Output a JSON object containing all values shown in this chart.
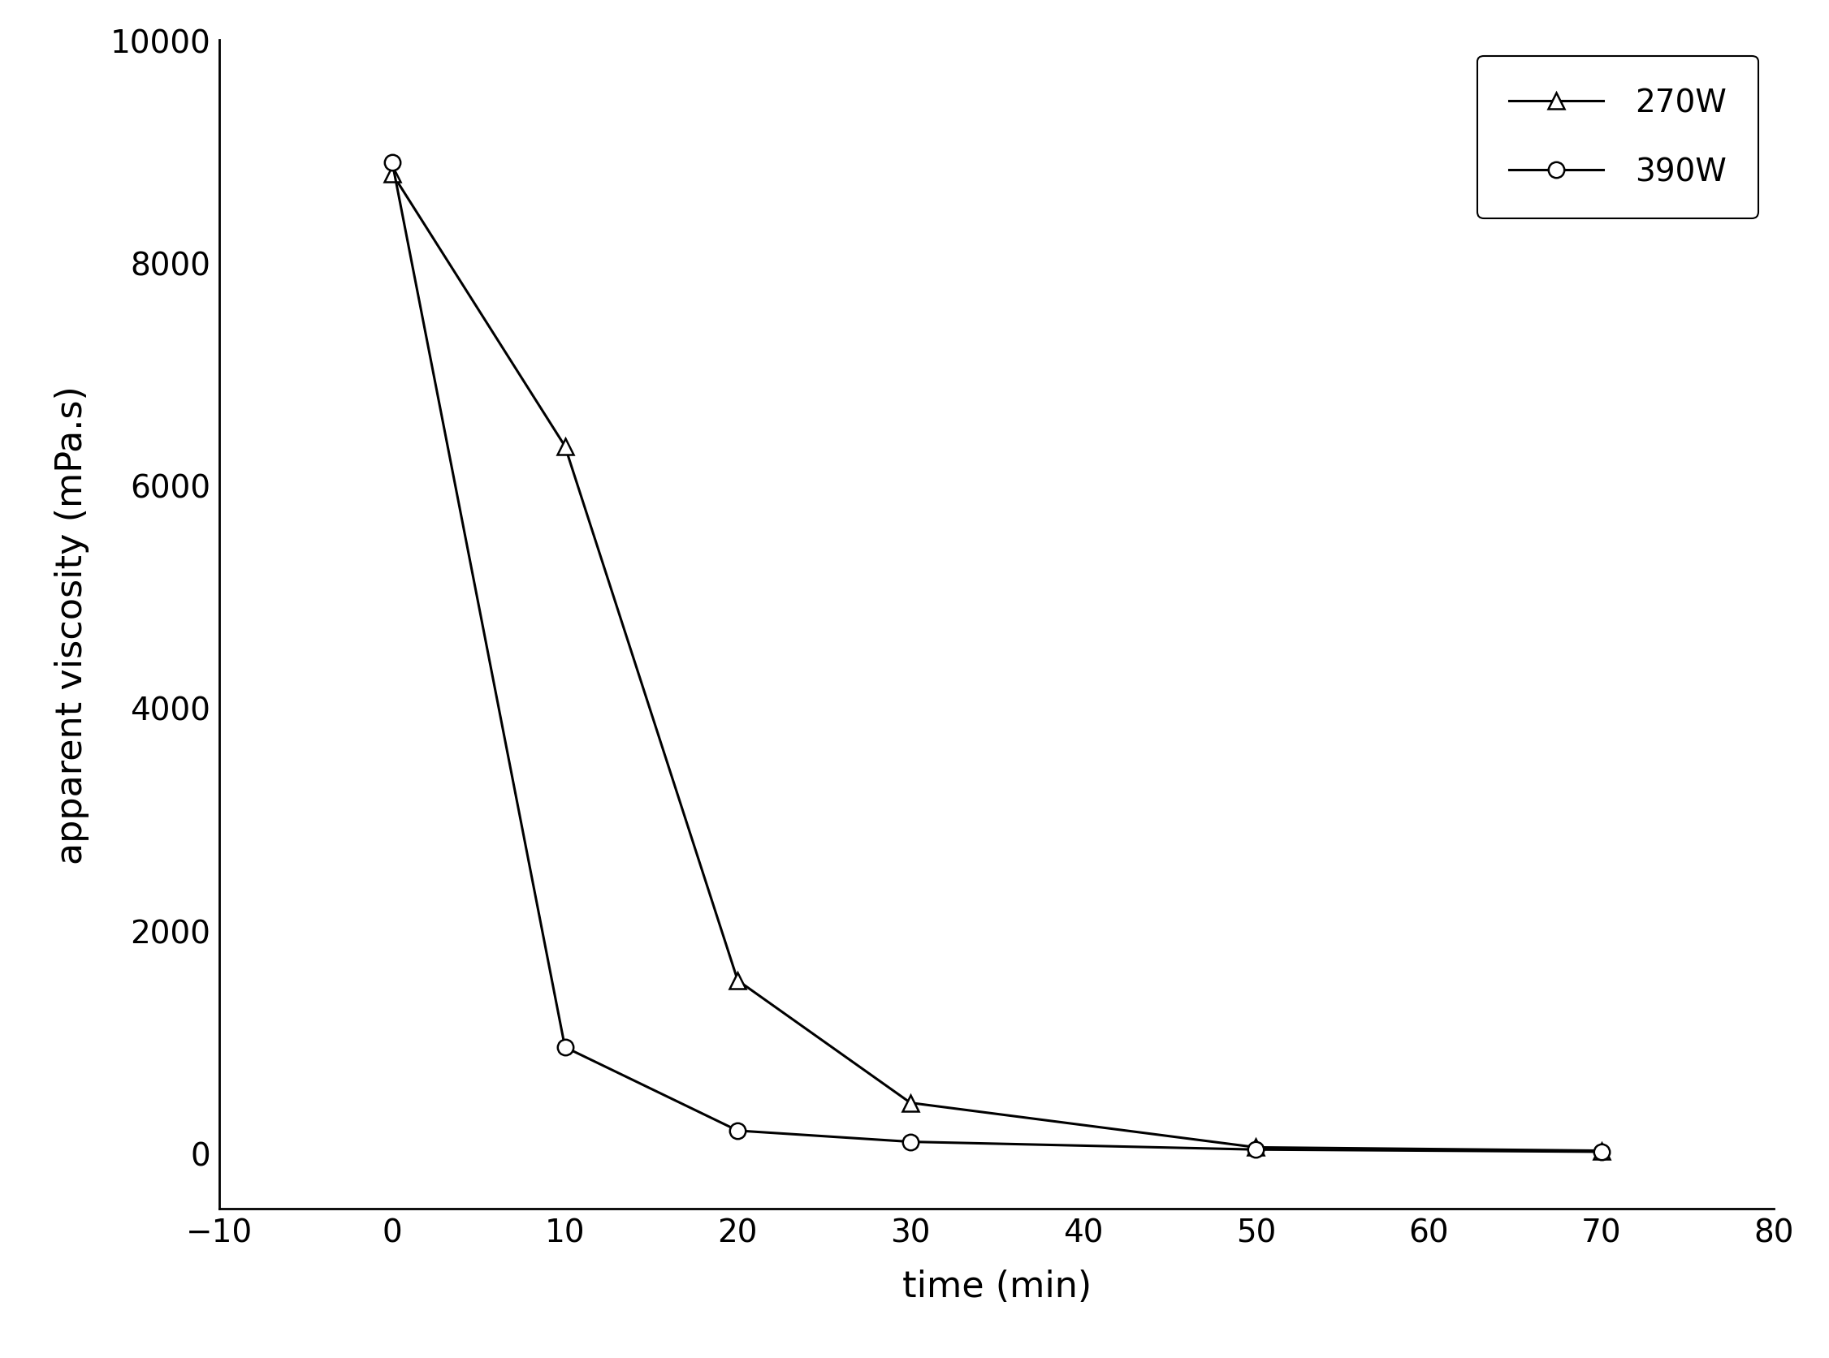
{
  "series": [
    {
      "label": "270W",
      "x": [
        0,
        10,
        20,
        30,
        50,
        70
      ],
      "y": [
        8800,
        6350,
        1550,
        450,
        50,
        20
      ],
      "marker": "^",
      "color": "#000000",
      "linewidth": 2.2,
      "markersize": 14,
      "markerfacecolor": "white",
      "markeredgecolor": "#000000",
      "markeredgewidth": 1.8
    },
    {
      "label": "390W",
      "x": [
        0,
        10,
        20,
        30,
        50,
        70
      ],
      "y": [
        8900,
        950,
        200,
        100,
        30,
        10
      ],
      "marker": "o",
      "color": "#000000",
      "linewidth": 2.2,
      "markersize": 14,
      "markerfacecolor": "white",
      "markeredgecolor": "#000000",
      "markeredgewidth": 1.8
    }
  ],
  "xlabel": "time (min)",
  "ylabel": "apparent viscosity (mPa.s)",
  "xlim": [
    -10,
    80
  ],
  "ylim": [
    -500,
    10000
  ],
  "xticks": [
    -10,
    0,
    10,
    20,
    30,
    40,
    50,
    60,
    70,
    80
  ],
  "yticks": [
    0,
    2000,
    4000,
    6000,
    8000,
    10000
  ],
  "legend_loc": "upper right",
  "background_color": "#ffffff",
  "tick_fontsize": 28,
  "label_fontsize": 32,
  "legend_fontsize": 28
}
